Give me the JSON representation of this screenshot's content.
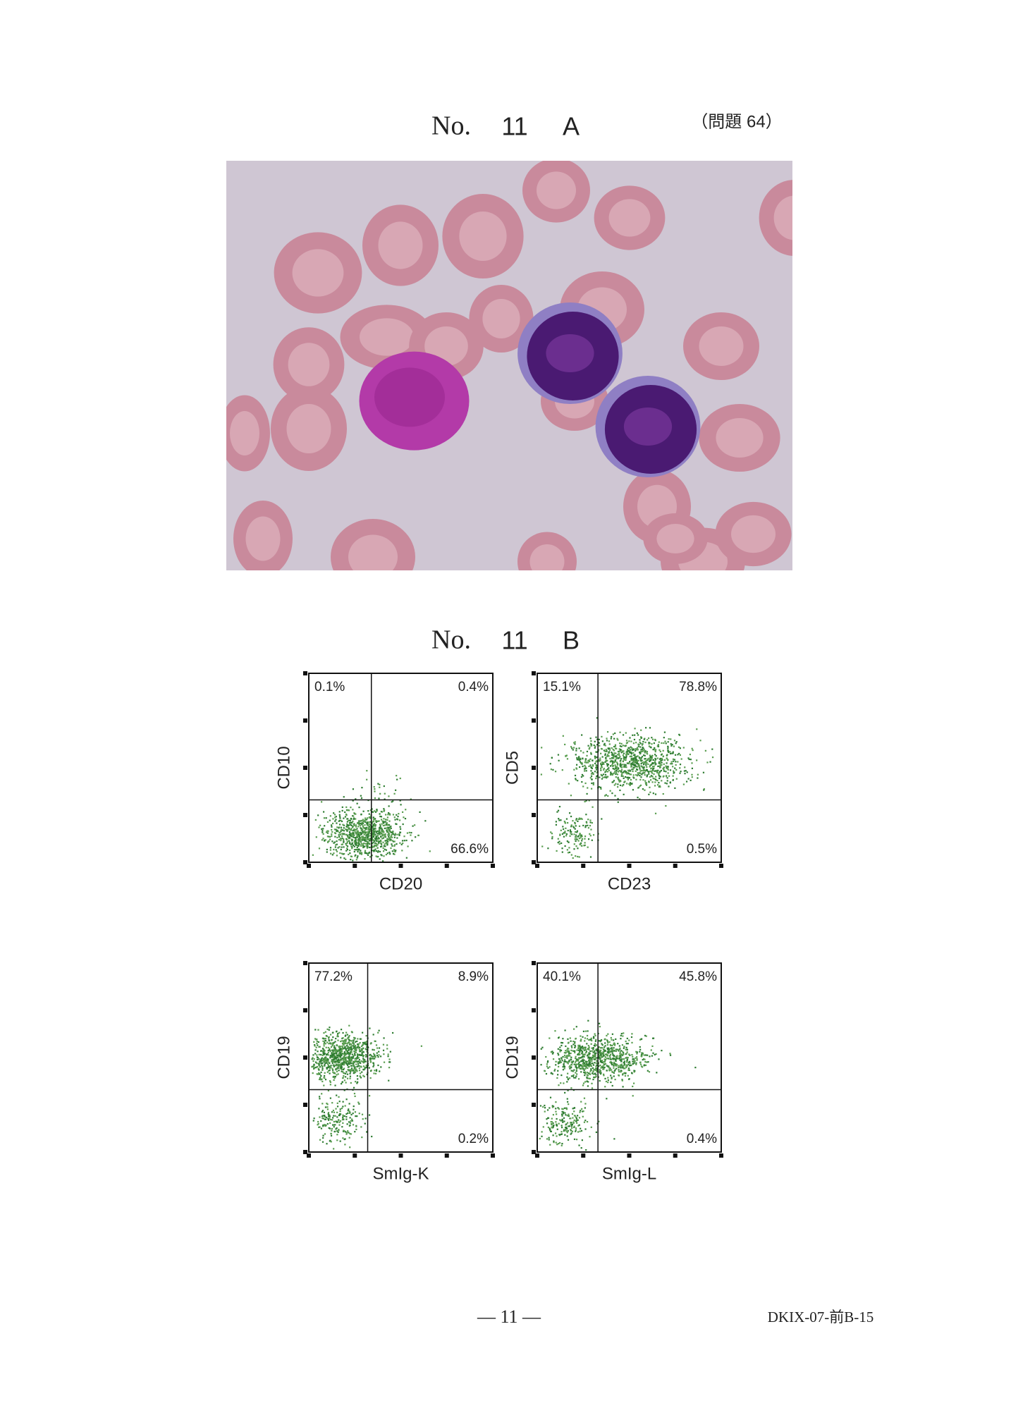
{
  "panel_a": {
    "label": "No.",
    "number": "11",
    "letter": "A",
    "question": "（問題 64）"
  },
  "panel_b": {
    "label": "No.",
    "number": "11",
    "letter": "B",
    "plots": [
      {
        "y_label": "CD10",
        "x_label": "CD20",
        "upper_left": "0.1%",
        "upper_right": "0.4%",
        "lower_right": "66.6%"
      },
      {
        "y_label": "CD5",
        "x_label": "CD23",
        "upper_left": "15.1%",
        "upper_right": "78.8%",
        "lower_right": "0.5%"
      },
      {
        "y_label": "CD19",
        "x_label": "SmIg-K",
        "upper_left": "77.2%",
        "upper_right": "8.9%",
        "lower_right": "0.2%"
      },
      {
        "y_label": "CD19",
        "x_label": "SmIg-L",
        "upper_left": "40.1%",
        "upper_right": "45.8%",
        "lower_right": "0.4%"
      }
    ]
  },
  "footer": {
    "page": "— 11 —",
    "code": "DKIX-07-前B-15"
  }
}
